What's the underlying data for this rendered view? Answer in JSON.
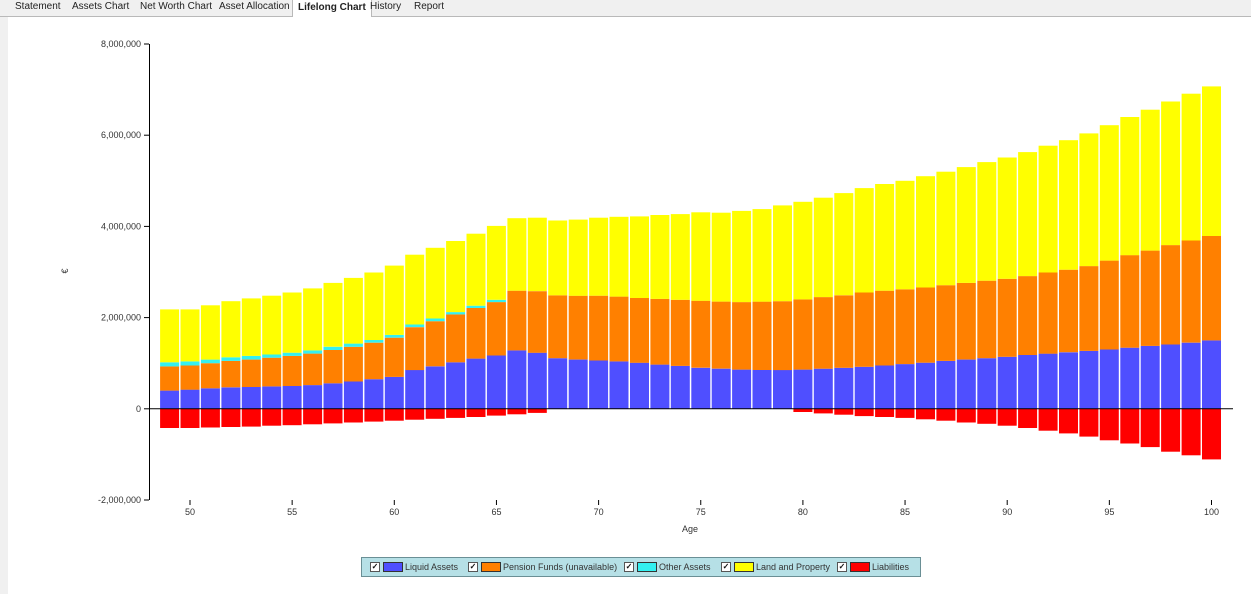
{
  "tabs": [
    {
      "label": "Statement",
      "active": false
    },
    {
      "label": "Assets Chart",
      "active": false
    },
    {
      "label": "Net Worth Chart",
      "active": false
    },
    {
      "label": "Asset Allocation",
      "active": false
    },
    {
      "label": "Lifelong Chart",
      "active": true
    },
    {
      "label": "History",
      "active": false
    },
    {
      "label": "Report",
      "active": false
    }
  ],
  "chart_data": {
    "type": "bar",
    "stacked": true,
    "xlabel": "Age",
    "ylabel": "€",
    "ylim": [
      -2000000,
      8000000
    ],
    "y_ticks": [
      -2000000,
      0,
      2000000,
      4000000,
      6000000,
      8000000
    ],
    "y_tick_labels": [
      "-2,000,000",
      "0",
      "2,000,000",
      "4,000,000",
      "6,000,000",
      "8,000,000"
    ],
    "x_ticks": [
      50,
      55,
      60,
      65,
      70,
      75,
      80,
      85,
      90,
      95,
      100
    ],
    "categories": [
      49,
      50,
      51,
      52,
      53,
      54,
      55,
      56,
      57,
      58,
      59,
      60,
      61,
      62,
      63,
      64,
      65,
      66,
      67,
      68,
      69,
      70,
      71,
      72,
      73,
      74,
      75,
      76,
      77,
      78,
      79,
      80,
      81,
      82,
      83,
      84,
      85,
      86,
      87,
      88,
      89,
      90,
      91,
      92,
      93,
      94,
      95,
      96,
      97,
      98,
      99,
      100
    ],
    "series": [
      {
        "name": "Liquid Assets",
        "color": "#4f4fff",
        "values": [
          400000,
          420000,
          450000,
          470000,
          480000,
          490000,
          500000,
          520000,
          560000,
          600000,
          650000,
          700000,
          850000,
          930000,
          1020000,
          1100000,
          1170000,
          1280000,
          1230000,
          1110000,
          1080000,
          1060000,
          1040000,
          1010000,
          970000,
          940000,
          900000,
          880000,
          860000,
          850000,
          850000,
          860000,
          880000,
          900000,
          920000,
          950000,
          980000,
          1010000,
          1050000,
          1080000,
          1110000,
          1140000,
          1180000,
          1210000,
          1240000,
          1270000,
          1300000,
          1340000,
          1380000,
          1410000,
          1450000,
          1500000
        ]
      },
      {
        "name": "Pension Funds (unavailable)",
        "color": "#ff8000",
        "values": [
          530000,
          530000,
          550000,
          580000,
          600000,
          630000,
          660000,
          690000,
          730000,
          760000,
          800000,
          860000,
          940000,
          990000,
          1050000,
          1110000,
          1170000,
          1310000,
          1350000,
          1380000,
          1400000,
          1420000,
          1420000,
          1420000,
          1440000,
          1450000,
          1470000,
          1470000,
          1480000,
          1500000,
          1510000,
          1540000,
          1570000,
          1590000,
          1630000,
          1640000,
          1640000,
          1650000,
          1660000,
          1680000,
          1700000,
          1710000,
          1730000,
          1780000,
          1810000,
          1860000,
          1950000,
          2030000,
          2090000,
          2180000,
          2240000,
          2290000
        ]
      },
      {
        "name": "Other Assets",
        "color": "#33f0f0",
        "values": [
          90000,
          90000,
          80000,
          80000,
          80000,
          70000,
          70000,
          70000,
          70000,
          70000,
          60000,
          60000,
          60000,
          60000,
          50000,
          50000,
          50000,
          0,
          0,
          0,
          0,
          0,
          0,
          0,
          0,
          0,
          0,
          0,
          0,
          0,
          0,
          0,
          0,
          0,
          0,
          0,
          0,
          0,
          0,
          0,
          0,
          0,
          0,
          0,
          0,
          0,
          0,
          0,
          0,
          0,
          0,
          0
        ]
      },
      {
        "name": "Land and Property",
        "color": "#ffff00",
        "values": [
          1160000,
          1140000,
          1190000,
          1230000,
          1260000,
          1290000,
          1320000,
          1360000,
          1400000,
          1440000,
          1480000,
          1520000,
          1530000,
          1550000,
          1560000,
          1580000,
          1620000,
          1590000,
          1610000,
          1640000,
          1670000,
          1710000,
          1750000,
          1790000,
          1840000,
          1880000,
          1940000,
          1950000,
          2000000,
          2030000,
          2100000,
          2140000,
          2180000,
          2240000,
          2290000,
          2340000,
          2380000,
          2440000,
          2490000,
          2540000,
          2600000,
          2660000,
          2720000,
          2780000,
          2840000,
          2910000,
          2970000,
          3030000,
          3090000,
          3150000,
          3220000,
          3280000
        ]
      },
      {
        "name": "Liabilities",
        "color": "#ff0000",
        "values": [
          -420000,
          -420000,
          -410000,
          -400000,
          -390000,
          -370000,
          -360000,
          -340000,
          -320000,
          -300000,
          -280000,
          -260000,
          -240000,
          -220000,
          -200000,
          -180000,
          -150000,
          -120000,
          -90000,
          0,
          0,
          0,
          0,
          0,
          0,
          0,
          0,
          0,
          0,
          0,
          0,
          -70000,
          -100000,
          -130000,
          -160000,
          -180000,
          -200000,
          -230000,
          -260000,
          -300000,
          -330000,
          -370000,
          -420000,
          -480000,
          -540000,
          -610000,
          -690000,
          -760000,
          -840000,
          -940000,
          -1020000,
          -1110000
        ]
      }
    ]
  },
  "legend": [
    {
      "label": "Liquid Assets",
      "color": "#4f4fff",
      "checked": true
    },
    {
      "label": "Pension Funds (unavailable)",
      "color": "#ff8000",
      "checked": true
    },
    {
      "label": "Other Assets",
      "color": "#33f0f0",
      "checked": true
    },
    {
      "label": "Land and Property",
      "color": "#ffff00",
      "checked": true
    },
    {
      "label": "Liabilities",
      "color": "#ff0000",
      "checked": true
    }
  ]
}
